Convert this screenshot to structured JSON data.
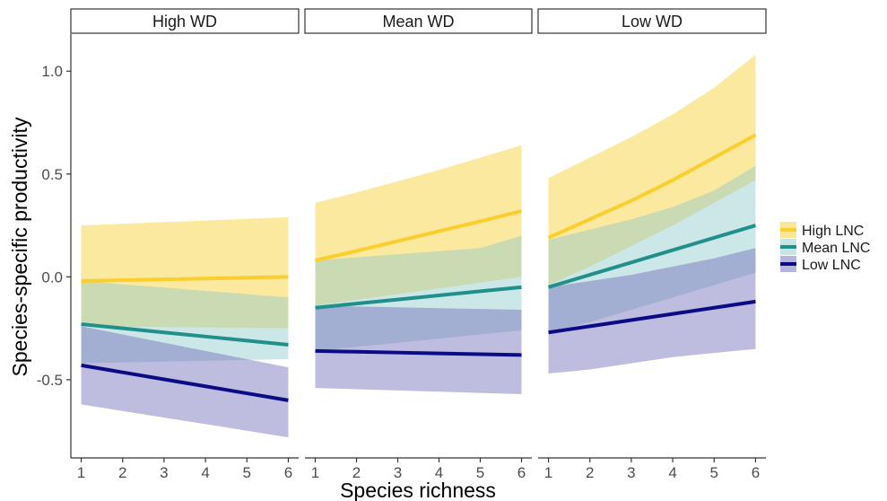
{
  "chart_data": {
    "type": "line",
    "xlabel": "Species richness",
    "ylabel": "Species-specific productivity",
    "x": [
      1,
      2,
      3,
      4,
      5,
      6
    ],
    "xlim": [
      0.75,
      6.25
    ],
    "ylim": [
      -0.88,
      1.18
    ],
    "yticks": [
      -0.5,
      0.0,
      0.5,
      1.0
    ],
    "ytick_labels": [
      "-0.5",
      "0.0",
      "0.5",
      "1.0"
    ],
    "xtick_labels": [
      "1",
      "2",
      "3",
      "4",
      "5",
      "6"
    ],
    "legend": {
      "position": "right",
      "entries": [
        {
          "label": "High LNC",
          "color": "#F9CE2D",
          "band_color": "#F9CE2D"
        },
        {
          "label": "Mean LNC",
          "color": "#21908C",
          "band_color": "#8FC9C9"
        },
        {
          "label": "Low LNC",
          "color": "#0B0B87",
          "band_color": "#6E6AB8"
        }
      ]
    },
    "panels": [
      {
        "title": "High WD",
        "series": [
          {
            "name": "High LNC",
            "mean": [
              -0.02,
              -0.016,
              -0.012,
              -0.008,
              -0.004,
              0.0
            ],
            "lower": [
              -0.24,
              -0.242,
              -0.244,
              -0.246,
              -0.248,
              -0.25
            ],
            "upper": [
              0.25,
              0.258,
              0.266,
              0.274,
              0.282,
              0.29
            ]
          },
          {
            "name": "Mean LNC",
            "mean": [
              -0.23,
              -0.25,
              -0.27,
              -0.29,
              -0.31,
              -0.33
            ],
            "lower": [
              -0.42,
              -0.416,
              -0.412,
              -0.408,
              -0.404,
              -0.4
            ],
            "upper": [
              -0.02,
              -0.036,
              -0.052,
              -0.068,
              -0.084,
              -0.1
            ]
          },
          {
            "name": "Low LNC",
            "mean": [
              -0.43,
              -0.464,
              -0.498,
              -0.532,
              -0.566,
              -0.6
            ],
            "lower": [
              -0.62,
              -0.652,
              -0.684,
              -0.716,
              -0.748,
              -0.78
            ],
            "upper": [
              -0.24,
              -0.28,
              -0.32,
              -0.36,
              -0.4,
              -0.44
            ]
          }
        ]
      },
      {
        "title": "Mean WD",
        "series": [
          {
            "name": "High LNC",
            "mean": [
              0.08,
              0.126,
              0.174,
              0.222,
              0.27,
              0.32
            ],
            "lower": [
              -0.14,
              -0.112,
              -0.084,
              -0.056,
              -0.028,
              0.0
            ],
            "upper": [
              0.36,
              0.41,
              0.465,
              0.52,
              0.58,
              0.64
            ]
          },
          {
            "name": "Mean LNC",
            "mean": [
              -0.15,
              -0.13,
              -0.11,
              -0.09,
              -0.07,
              -0.05
            ],
            "lower": [
              -0.36,
              -0.34,
              -0.32,
              -0.3,
              -0.28,
              -0.26
            ],
            "upper": [
              0.08,
              0.095,
              0.11,
              0.125,
              0.14,
              0.2
            ]
          },
          {
            "name": "Low LNC",
            "mean": [
              -0.36,
              -0.364,
              -0.368,
              -0.372,
              -0.376,
              -0.38
            ],
            "lower": [
              -0.54,
              -0.546,
              -0.552,
              -0.558,
              -0.564,
              -0.57
            ],
            "upper": [
              -0.14,
              -0.144,
              -0.148,
              -0.152,
              -0.156,
              -0.16
            ]
          }
        ]
      },
      {
        "title": "Low WD",
        "series": [
          {
            "name": "High LNC",
            "mean": [
              0.19,
              0.28,
              0.37,
              0.47,
              0.58,
              0.69
            ],
            "lower": [
              -0.04,
              0.05,
              0.15,
              0.25,
              0.36,
              0.47
            ],
            "upper": [
              0.48,
              0.58,
              0.68,
              0.79,
              0.92,
              1.08
            ]
          },
          {
            "name": "Mean LNC",
            "mean": [
              -0.05,
              0.01,
              0.07,
              0.13,
              0.19,
              0.25
            ],
            "lower": [
              -0.27,
              -0.22,
              -0.16,
              -0.1,
              -0.04,
              0.02
            ],
            "upper": [
              0.18,
              0.23,
              0.28,
              0.34,
              0.42,
              0.54
            ]
          },
          {
            "name": "Low LNC",
            "mean": [
              -0.27,
              -0.24,
              -0.21,
              -0.18,
              -0.15,
              -0.12
            ],
            "lower": [
              -0.47,
              -0.45,
              -0.42,
              -0.39,
              -0.37,
              -0.35
            ],
            "upper": [
              -0.05,
              -0.02,
              0.01,
              0.05,
              0.09,
              0.14
            ]
          }
        ]
      }
    ]
  }
}
